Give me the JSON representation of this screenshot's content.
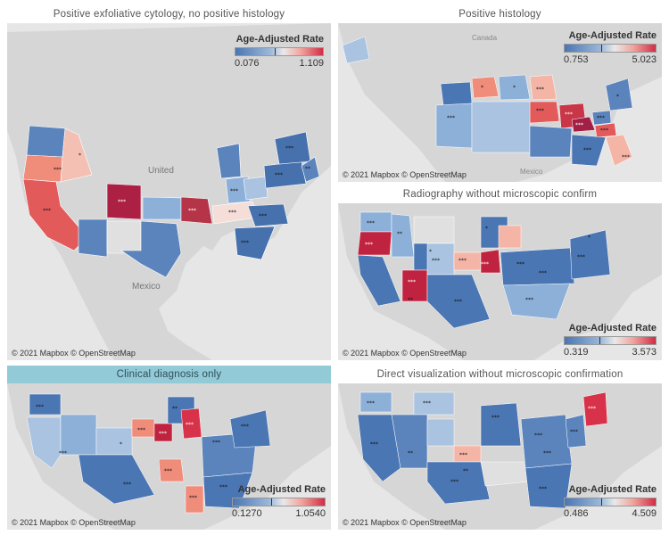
{
  "colors": {
    "low": "#4a76b3",
    "mid": "#e9e9e9",
    "high": "#d22c46",
    "land": "#dadada",
    "water": "#e6e6e6",
    "active_title_bg": "#93cad7"
  },
  "attribution": "© 2021 Mapbox © OpenStreetMap",
  "legend_title": "Age-Adjusted Rate",
  "map_labels": {
    "united": "United",
    "canada": "Canada",
    "mexico": "Mexico"
  },
  "panels": [
    {
      "title": "Positive exfoliative cytology, no positive histology",
      "min": "0.076",
      "max": "1.109"
    },
    {
      "title": "Positive histology",
      "min": "0.753",
      "max": "5.023"
    },
    {
      "title": "Radiography without microscopic confirm",
      "min": "0.319",
      "max": "3.573"
    },
    {
      "title": "Clinical diagnosis only",
      "min": "0.1270",
      "max": "1.0540"
    },
    {
      "title": "Direct visualization without microscopic confirmation",
      "min": "0.486",
      "max": "4.509"
    }
  ],
  "significance_marks": [
    "***",
    "**",
    "*"
  ]
}
